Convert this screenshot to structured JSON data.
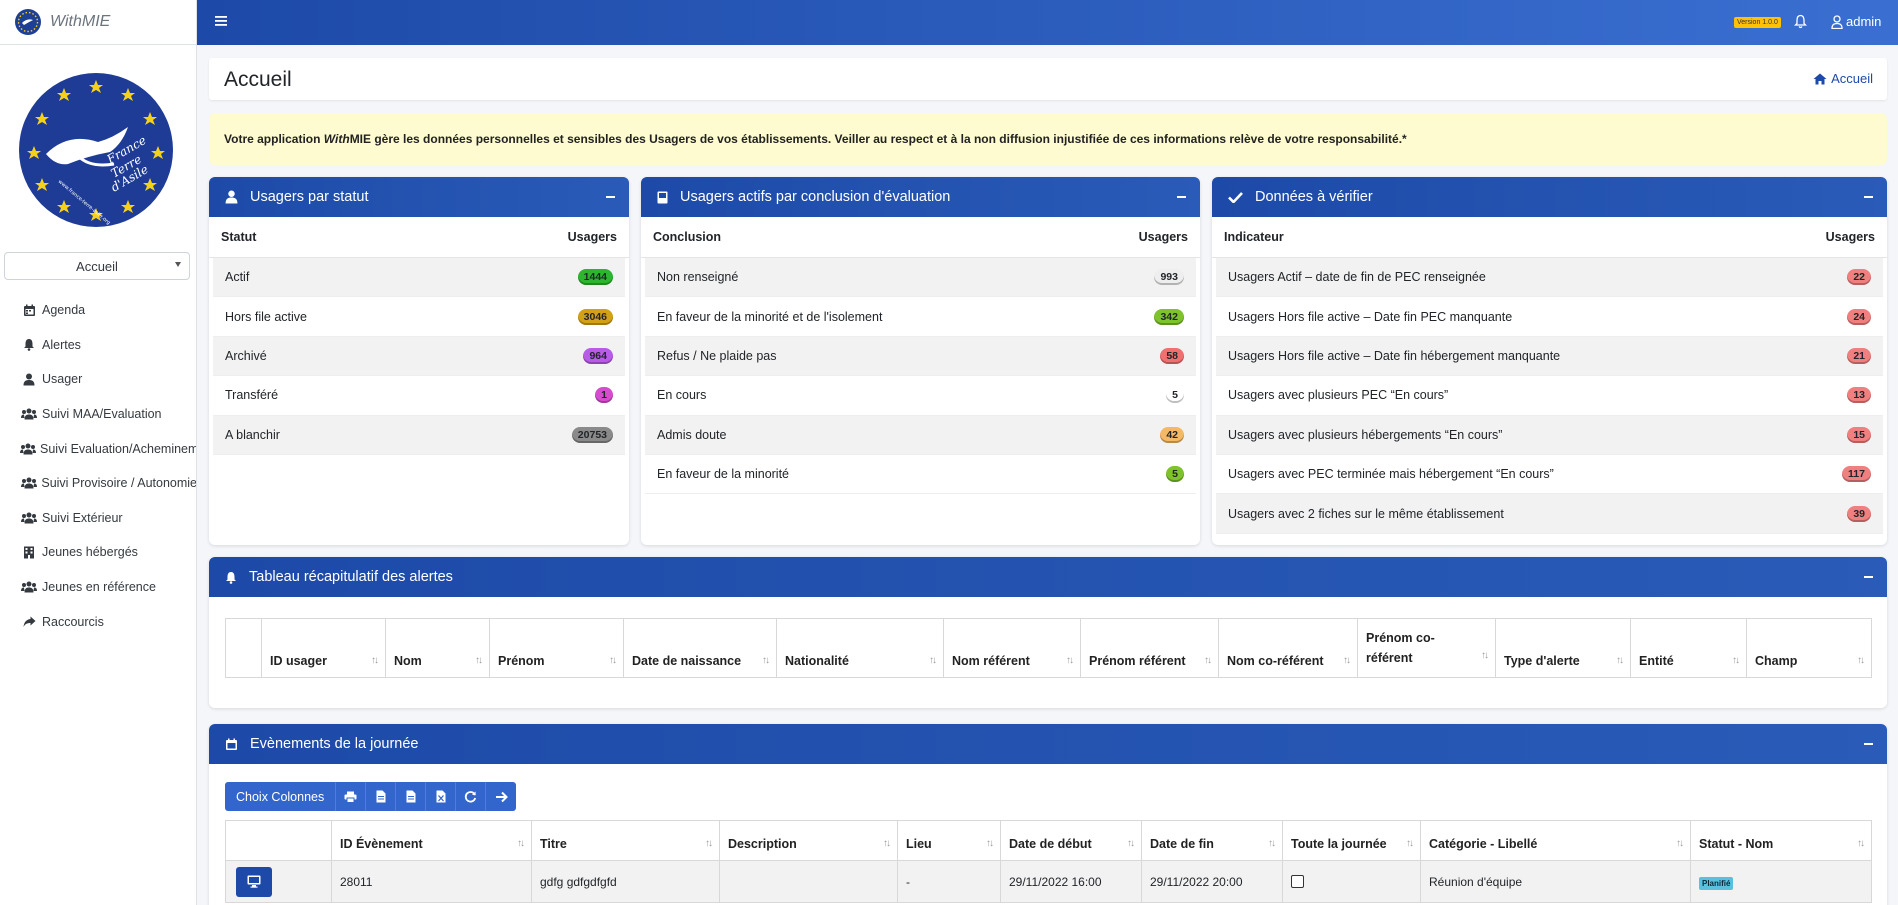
{
  "app": {
    "name": "WithMIE",
    "version_badge": "Version 1.0.0",
    "user": "admin"
  },
  "colors": {
    "primary": "#1d4aa8",
    "notice_bg": "#fdfbcf"
  },
  "logo": {
    "text_line1": "France",
    "text_line2": "Terre",
    "text_line3": "d'Asile",
    "url": "www.france-terre-asile.org"
  },
  "sidebar": {
    "page_select": "Accueil",
    "items": [
      {
        "label": "Agenda",
        "icon": "calendar-icon"
      },
      {
        "label": "Alertes",
        "icon": "bell-icon"
      },
      {
        "label": "Usager",
        "icon": "user-icon"
      },
      {
        "label": "Suivi MAA/Evaluation",
        "icon": "users-icon"
      },
      {
        "label": "Suivi Evaluation/Acheminement",
        "icon": "users-icon"
      },
      {
        "label": "Suivi Provisoire / Autonomie",
        "icon": "users-icon"
      },
      {
        "label": "Suivi Extérieur",
        "icon": "users-icon"
      },
      {
        "label": "Jeunes hébergés",
        "icon": "building-icon"
      },
      {
        "label": "Jeunes en référence",
        "icon": "users-icon"
      },
      {
        "label": "Raccourcis",
        "icon": "share-icon"
      }
    ]
  },
  "header": {
    "title": "Accueil",
    "breadcrumb": "Accueil"
  },
  "notice": {
    "part1": "Votre application ",
    "with": "With",
    "part2": "MIE gère les données personnelles et sensibles des Usagers de vos établissements. Veiller au respect et à la non diffusion injustifiée de ces informations relève de votre responsabilité.*"
  },
  "card_statut": {
    "title": "Usagers par statut",
    "col1": "Statut",
    "col2": "Usagers",
    "rows": [
      {
        "label": "Actif",
        "value": "1444",
        "color": "#2db52d",
        "text": "#1a1a1a"
      },
      {
        "label": "Hors file active",
        "value": "3046",
        "color": "#d4a017",
        "text": "#1a1a1a"
      },
      {
        "label": "Archivé",
        "value": "964",
        "color": "#b95be8",
        "text": "#1a1a1a"
      },
      {
        "label": "Transféré",
        "value": "1",
        "color": "#d64ccf",
        "text": "#1a1a1a"
      },
      {
        "label": "A blanchir",
        "value": "20753",
        "color": "#8a8a8a",
        "text": "#1a1a1a"
      }
    ]
  },
  "card_conclusion": {
    "title": "Usagers actifs par conclusion d'évaluation",
    "col1": "Conclusion",
    "col2": "Usagers",
    "rows": [
      {
        "label": "Non renseigné",
        "value": "993",
        "color": "#eeeeee",
        "text": "#1a1a1a"
      },
      {
        "label": "En faveur de la minorité et de l'isolement",
        "value": "342",
        "color": "#7ec22c",
        "text": "#1a1a1a"
      },
      {
        "label": "Refus / Ne plaide pas",
        "value": "58",
        "color": "#f07070",
        "text": "#1a1a1a"
      },
      {
        "label": "En cours",
        "value": "5",
        "color": "#ffffff",
        "text": "#1a1a1a"
      },
      {
        "label": "Admis doute",
        "value": "42",
        "color": "#f5b866",
        "text": "#1a1a1a"
      },
      {
        "label": "En faveur de la minorité",
        "value": "5",
        "color": "#7ec22c",
        "text": "#1a1a1a"
      }
    ]
  },
  "card_verifier": {
    "title": "Données à vérifier",
    "col1": "Indicateur",
    "col2": "Usagers",
    "rows": [
      {
        "label": "Usagers Actif – date de fin de PEC renseignée",
        "value": "22",
        "color": "#f08080",
        "text": "#1a1a1a"
      },
      {
        "label": "Usagers Hors file active – Date fin PEC manquante",
        "value": "24",
        "color": "#f08080",
        "text": "#1a1a1a"
      },
      {
        "label": "Usagers Hors file active – Date fin hébergement manquante",
        "value": "21",
        "color": "#f08080",
        "text": "#1a1a1a"
      },
      {
        "label": "Usagers avec plusieurs PEC “En cours”",
        "value": "13",
        "color": "#f08080",
        "text": "#1a1a1a"
      },
      {
        "label": "Usagers avec plusieurs hébergements “En cours”",
        "value": "15",
        "color": "#f08080",
        "text": "#1a1a1a"
      },
      {
        "label": "Usagers avec PEC terminée mais hébergement “En cours”",
        "value": "117",
        "color": "#f08080",
        "text": "#1a1a1a"
      },
      {
        "label": "Usagers avec 2 fiches sur le même établissement",
        "value": "39",
        "color": "#f08080",
        "text": "#1a1a1a"
      }
    ]
  },
  "card_alertes": {
    "title": "Tableau récapitulatif des alertes",
    "columns": [
      "",
      "ID usager",
      "Nom",
      "Prénom",
      "Date de naissance",
      "Nationalité",
      "Nom référent",
      "Prénom référent",
      "Nom co-référent",
      "Prénom co-référent",
      "Type d'alerte",
      "Entité",
      "Champ"
    ]
  },
  "card_events": {
    "title": "Evènements de la journée",
    "toolbar": {
      "choose_columns": "Choix Colonnes"
    },
    "columns": [
      "",
      "ID Évènement",
      "Titre",
      "Description",
      "Lieu",
      "Date de début",
      "Date de fin",
      "Toute la journée",
      "Catégorie - Libellé",
      "Statut - Nom"
    ],
    "rows": [
      {
        "id": "28011",
        "titre": "gdfg gdfgdfgfd",
        "description": "",
        "lieu": "-",
        "debut": "29/11/2022 16:00",
        "fin": "29/11/2022 20:00",
        "categorie": "Réunion d'équipe",
        "statut": "Planifié"
      }
    ]
  }
}
